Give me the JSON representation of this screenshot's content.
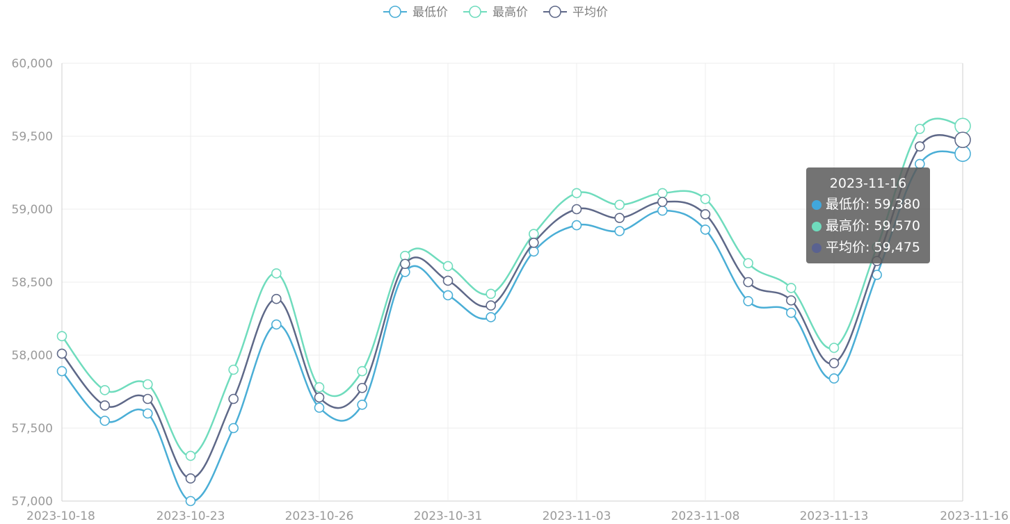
{
  "chart_data": {
    "type": "line",
    "title": "",
    "xlabel": "",
    "ylabel": "",
    "x": [
      "2023-10-18",
      "2023-10-19",
      "2023-10-20",
      "2023-10-23",
      "2023-10-24",
      "2023-10-25",
      "2023-10-26",
      "2023-10-27",
      "2023-10-30",
      "2023-10-31",
      "2023-11-01",
      "2023-11-02",
      "2023-11-03",
      "2023-11-06",
      "2023-11-07",
      "2023-11-08",
      "2023-11-09",
      "2023-11-10",
      "2023-11-13",
      "2023-11-14",
      "2023-11-15",
      "2023-11-16"
    ],
    "x_tick_labels": [
      "2023-10-18",
      "2023-10-23",
      "2023-10-26",
      "2023-10-31",
      "2023-11-03",
      "2023-11-08",
      "2023-11-13",
      "2023-11-16"
    ],
    "ylim": [
      57000,
      60000
    ],
    "y_ticks": [
      "57,000",
      "57,500",
      "58,000",
      "58,500",
      "59,000",
      "59,500",
      "60,000"
    ],
    "grid": true,
    "legend_position": "top-center",
    "series": [
      {
        "name": "最低价",
        "color": "#4aaed6",
        "values": [
          57890,
          57550,
          57600,
          57000,
          57500,
          58210,
          57640,
          57660,
          58570,
          58410,
          58260,
          58710,
          58890,
          58850,
          58990,
          58860,
          58370,
          58290,
          57840,
          58550,
          59310,
          59380
        ]
      },
      {
        "name": "最高价",
        "color": "#6fdcbd",
        "values": [
          58130,
          57760,
          57800,
          57310,
          57900,
          58560,
          57780,
          57890,
          58680,
          58610,
          58420,
          58830,
          59110,
          59030,
          59110,
          59070,
          58630,
          58460,
          58050,
          58740,
          59550,
          59570
        ]
      },
      {
        "name": "平均价",
        "color": "#5e6888",
        "values": [
          58010,
          57655,
          57700,
          57155,
          57700,
          58385,
          57710,
          57775,
          58625,
          58510,
          58340,
          58770,
          59000,
          58940,
          59050,
          58965,
          58500,
          58375,
          57945,
          58645,
          59430,
          59475
        ]
      }
    ],
    "tooltip": {
      "title": "2023-11-16",
      "rows": [
        {
          "label": "最低价: 59,380",
          "color": "#41a7dc"
        },
        {
          "label": "最高价: 59,570",
          "color": "#6fdcbd"
        },
        {
          "label": "平均价: 59,475",
          "color": "#5a6290"
        }
      ]
    }
  }
}
